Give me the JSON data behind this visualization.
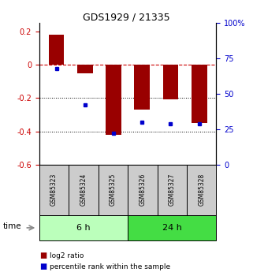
{
  "title": "GDS1929 / 21335",
  "samples": [
    "GSM85323",
    "GSM85324",
    "GSM85325",
    "GSM85326",
    "GSM85327",
    "GSM85328"
  ],
  "log2_ratio": [
    0.18,
    -0.05,
    -0.42,
    -0.27,
    -0.21,
    -0.35
  ],
  "percentile_rank": [
    68,
    42,
    22,
    30,
    29,
    29
  ],
  "groups": [
    {
      "label": "6 h",
      "indices": [
        0,
        1,
        2
      ],
      "color": "#bbffbb"
    },
    {
      "label": "24 h",
      "indices": [
        3,
        4,
        5
      ],
      "color": "#44dd44"
    }
  ],
  "bar_color": "#990000",
  "dot_color": "#0000cc",
  "ylim_left": [
    -0.6,
    0.25
  ],
  "ylim_right": [
    0,
    100
  ],
  "yticks_left": [
    -0.6,
    -0.4,
    -0.2,
    0.0,
    0.2
  ],
  "yticks_right": [
    0,
    25,
    50,
    75,
    100
  ],
  "dotted_lines": [
    -0.2,
    -0.4
  ],
  "bar_width": 0.55,
  "time_label": "time",
  "legend_items": [
    {
      "label": "log2 ratio",
      "color": "#990000"
    },
    {
      "label": "percentile rank within the sample",
      "color": "#0000cc"
    }
  ]
}
